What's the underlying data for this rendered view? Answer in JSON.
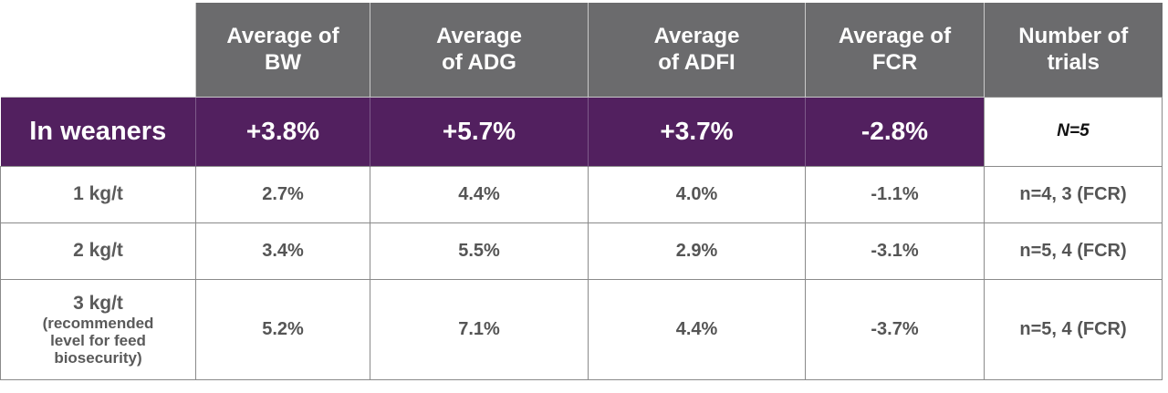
{
  "table": {
    "headers": [
      "Average of BW",
      "Average of ADG",
      "Average of ADFI",
      "Average of FCR",
      "Number of trials"
    ],
    "header_lines": [
      [
        "Average of",
        "BW"
      ],
      [
        "Average",
        "of ADG"
      ],
      [
        "Average",
        "of ADFI"
      ],
      [
        "Average of",
        "FCR"
      ],
      [
        "Number of",
        "trials"
      ]
    ],
    "summary": {
      "label": "In weaners",
      "values": [
        "+3.8%",
        "+5.7%",
        "+3.7%",
        "-2.8%"
      ],
      "trials": "N=5"
    },
    "rows": [
      {
        "label": "1 kg/t",
        "values": [
          "2.7%",
          "4.4%",
          "4.0%",
          "-1.1%"
        ],
        "trials": "n=4, 3 (FCR)"
      },
      {
        "label": "2 kg/t",
        "values": [
          "3.4%",
          "5.5%",
          "2.9%",
          "-3.1%"
        ],
        "trials": "n=5, 4 (FCR)"
      },
      {
        "label": "3 kg/t",
        "label_note": [
          "(recommended",
          "level for feed",
          "biosecurity)"
        ],
        "values": [
          "5.2%",
          "7.1%",
          "4.4%",
          "-3.7%"
        ],
        "trials": "n=5, 4 (FCR)"
      }
    ]
  },
  "colors": {
    "header_bg": "#6b6b6d",
    "summary_bg": "#52205f",
    "border": "#8a8a8a",
    "data_text": "#555555"
  }
}
